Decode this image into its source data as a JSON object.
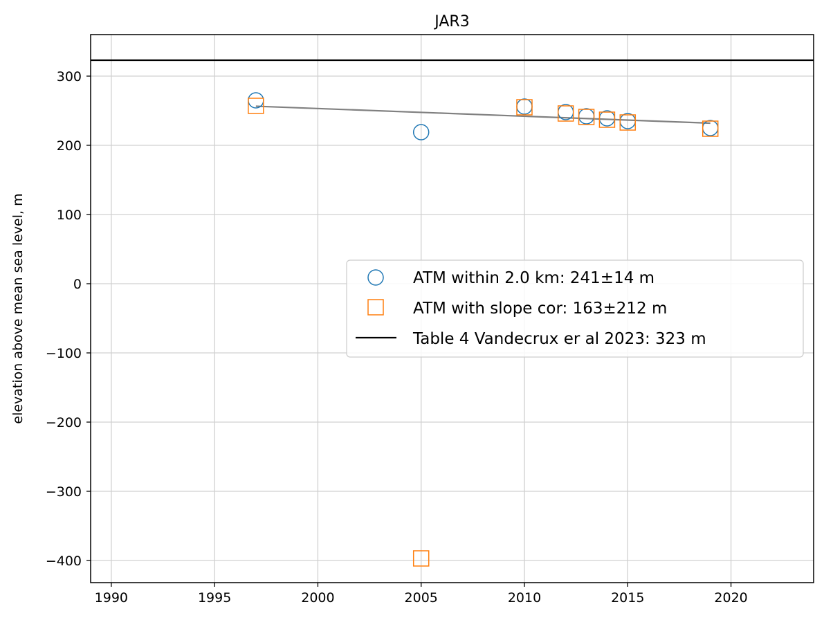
{
  "chart_data": {
    "type": "scatter",
    "title": "JAR3",
    "xlabel": "",
    "ylabel": "elevation above mean sea level, m",
    "xlim": [
      1989,
      2024
    ],
    "ylim": [
      -432,
      360
    ],
    "xticks": [
      1990,
      1995,
      2000,
      2005,
      2010,
      2015,
      2020
    ],
    "xtick_labels": [
      "1990",
      "1995",
      "2000",
      "2005",
      "2010",
      "2015",
      "2020"
    ],
    "yticks": [
      -400,
      -300,
      -200,
      -100,
      0,
      100,
      200,
      300
    ],
    "ytick_labels": [
      "−400",
      "−300",
      "−200",
      "−100",
      "0",
      "100",
      "200",
      "300"
    ],
    "grid": true,
    "legend_position": "center-right",
    "series": [
      {
        "name": "ATM within 2.0 km: 241±14 m",
        "marker": "circle",
        "color": "#1f77b4",
        "x": [
          1997,
          2005,
          2010,
          2012,
          2013,
          2014,
          2015,
          2019
        ],
        "y": [
          265,
          219,
          256,
          248,
          242,
          239,
          235,
          225
        ]
      },
      {
        "name": "ATM with slope cor: 163±212 m",
        "marker": "square",
        "color": "#ff7f0e",
        "x": [
          1997,
          2005,
          2010,
          2012,
          2013,
          2014,
          2015,
          2019
        ],
        "y": [
          257,
          -397,
          255,
          246,
          241,
          237,
          233,
          224
        ]
      },
      {
        "name": "Table 4 Vandecrux er al 2023: 323 m",
        "type": "hline",
        "color": "#000000",
        "y": 323
      },
      {
        "name": "",
        "type": "trend",
        "color": "#808080",
        "x": [
          1997,
          2019
        ],
        "y": [
          256.5,
          232
        ]
      }
    ]
  }
}
